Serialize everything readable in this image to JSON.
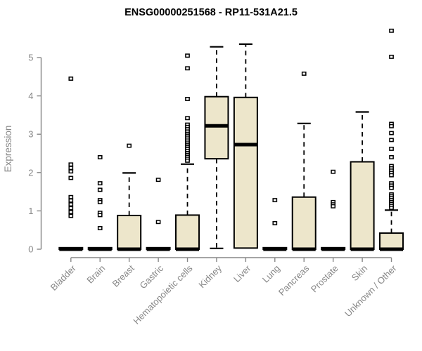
{
  "page": {
    "background": "#ffffff"
  },
  "chart_data": {
    "type": "boxplot",
    "title": "ENSG00000251568 - RP11-531A21.5",
    "xlabel": "",
    "ylabel": "Expression",
    "ylim": [
      0,
      5
    ],
    "yticks": [
      0,
      1,
      2,
      3,
      4,
      5
    ],
    "grid": false,
    "legend": false,
    "colors": {
      "box_fill": "#EDE6CB",
      "box_border": "#000000",
      "median": "#000000",
      "whisker": "#000000",
      "axis": "#878787",
      "tick_label": "#878787",
      "title": "#000000",
      "outlier_fill": "#FFFFFF",
      "outlier_border": "#000000"
    },
    "categories": [
      "Bladder",
      "Brain",
      "Breast",
      "Gastric",
      "Hematopoietic cells",
      "Kidney",
      "Liver",
      "Lung",
      "Pancreas",
      "Prostate",
      "Skin",
      "Unknown / Other"
    ],
    "boxes": [
      {
        "label": "Bladder",
        "q1": 0,
        "median": 0,
        "q3": 0.04,
        "whisker_low": 0,
        "whisker_high": 0.04,
        "outliers": [
          4.45,
          2.21,
          2.12,
          2.03,
          1.86,
          1.36,
          1.27,
          1.17,
          1.07,
          0.97,
          0.87
        ]
      },
      {
        "label": "Brain",
        "q1": 0,
        "median": 0,
        "q3": 0.04,
        "whisker_low": 0,
        "whisker_high": 0.04,
        "outliers": [
          2.4,
          1.72,
          1.55,
          1.28,
          1.23,
          0.95,
          0.89,
          0.55
        ]
      },
      {
        "label": "Breast",
        "q1": 0,
        "median": 0,
        "q3": 0.88,
        "whisker_low": 0,
        "whisker_high": 1.99,
        "outliers": [
          2.7
        ]
      },
      {
        "label": "Gastric",
        "q1": 0,
        "median": 0,
        "q3": 0.04,
        "whisker_low": 0,
        "whisker_high": 0.04,
        "outliers": [
          1.81,
          0.71
        ]
      },
      {
        "label": "Hematopoietic cells",
        "q1": 0,
        "median": 0,
        "q3": 0.89,
        "whisker_low": 0,
        "whisker_high": 2.22,
        "outliers": [
          5.05,
          4.72,
          3.92,
          3.42,
          3.25,
          3.19,
          3.13,
          3.07,
          3.01,
          2.96,
          2.91,
          2.86,
          2.81,
          2.76,
          2.71,
          2.66,
          2.61,
          2.56,
          2.51,
          2.46,
          2.41,
          2.36,
          2.31
        ]
      },
      {
        "label": "Kidney",
        "q1": 2.36,
        "median": 3.22,
        "q3": 3.98,
        "whisker_low": 0.02,
        "whisker_high": 5.28,
        "outliers": []
      },
      {
        "label": "Liver",
        "q1": 0.03,
        "median": 2.73,
        "q3": 3.96,
        "whisker_low": 0.03,
        "whisker_high": 5.35,
        "outliers": []
      },
      {
        "label": "Lung",
        "q1": 0,
        "median": 0,
        "q3": 0.04,
        "whisker_low": 0,
        "whisker_high": 0.04,
        "outliers": [
          1.28,
          0.68
        ]
      },
      {
        "label": "Pancreas",
        "q1": 0,
        "median": 0,
        "q3": 1.36,
        "whisker_low": 0,
        "whisker_high": 3.28,
        "outliers": [
          4.58
        ]
      },
      {
        "label": "Prostate",
        "q1": 0,
        "median": 0,
        "q3": 0.04,
        "whisker_low": 0,
        "whisker_high": 0.04,
        "outliers": [
          2.02,
          1.23,
          1.17,
          1.12
        ]
      },
      {
        "label": "Skin",
        "q1": 0,
        "median": 0,
        "q3": 2.28,
        "whisker_low": 0,
        "whisker_high": 3.58,
        "outliers": []
      },
      {
        "label": "Unknown / Other",
        "q1": 0,
        "median": 0,
        "q3": 0.42,
        "whisker_low": 0,
        "whisker_high": 1.02,
        "outliers": [
          5.7,
          5.02,
          3.27,
          3.21,
          3.03,
          2.85,
          2.62,
          2.4,
          2.17,
          2.11,
          2.05,
          1.99,
          1.93,
          1.72,
          1.66,
          1.6,
          1.43,
          1.38,
          1.33,
          1.28,
          1.23,
          1.18,
          1.13,
          1.08
        ]
      }
    ]
  }
}
